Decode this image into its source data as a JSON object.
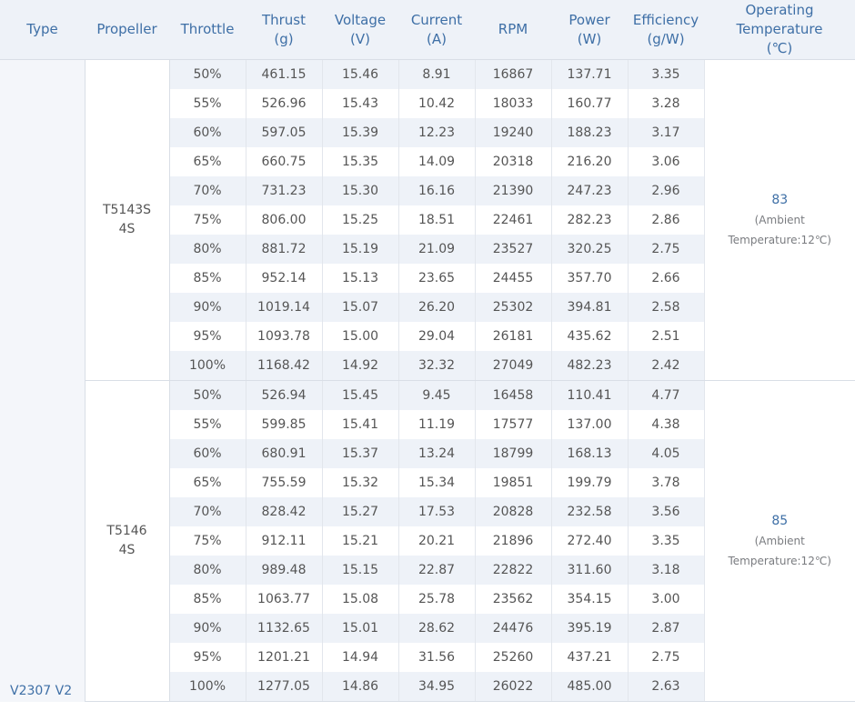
{
  "headers": [
    {
      "name": "Type",
      "unit": ""
    },
    {
      "name": "Propeller",
      "unit": ""
    },
    {
      "name": "Throttle",
      "unit": ""
    },
    {
      "name": "Thrust",
      "unit": "(g)"
    },
    {
      "name": "Voltage",
      "unit": "(V)"
    },
    {
      "name": "Current",
      "unit": "(A)"
    },
    {
      "name": "RPM",
      "unit": ""
    },
    {
      "name": "Power",
      "unit": "(W)"
    },
    {
      "name": "Efficiency",
      "unit": "(g/W)"
    },
    {
      "name": "Operating Temperature",
      "unit": "(℃)"
    }
  ],
  "type_label": "V2307 V2",
  "groups": [
    {
      "propeller": [
        "T5143S",
        "4S"
      ],
      "temperature": "83",
      "temperature_note": "(Ambient Temperature:12℃)",
      "rows": [
        [
          "50%",
          "461.15",
          "15.46",
          "8.91",
          "16867",
          "137.71",
          "3.35"
        ],
        [
          "55%",
          "526.96",
          "15.43",
          "10.42",
          "18033",
          "160.77",
          "3.28"
        ],
        [
          "60%",
          "597.05",
          "15.39",
          "12.23",
          "19240",
          "188.23",
          "3.17"
        ],
        [
          "65%",
          "660.75",
          "15.35",
          "14.09",
          "20318",
          "216.20",
          "3.06"
        ],
        [
          "70%",
          "731.23",
          "15.30",
          "16.16",
          "21390",
          "247.23",
          "2.96"
        ],
        [
          "75%",
          "806.00",
          "15.25",
          "18.51",
          "22461",
          "282.23",
          "2.86"
        ],
        [
          "80%",
          "881.72",
          "15.19",
          "21.09",
          "23527",
          "320.25",
          "2.75"
        ],
        [
          "85%",
          "952.14",
          "15.13",
          "23.65",
          "24455",
          "357.70",
          "2.66"
        ],
        [
          "90%",
          "1019.14",
          "15.07",
          "26.20",
          "25302",
          "394.81",
          "2.58"
        ],
        [
          "95%",
          "1093.78",
          "15.00",
          "29.04",
          "26181",
          "435.62",
          "2.51"
        ],
        [
          "100%",
          "1168.42",
          "14.92",
          "32.32",
          "27049",
          "482.23",
          "2.42"
        ]
      ]
    },
    {
      "propeller": [
        "T5146",
        "4S"
      ],
      "temperature": "85",
      "temperature_note": "(Ambient Temperature:12℃)",
      "rows": [
        [
          "50%",
          "526.94",
          "15.45",
          "9.45",
          "16458",
          "110.41",
          "4.77"
        ],
        [
          "55%",
          "599.85",
          "15.41",
          "11.19",
          "17577",
          "137.00",
          "4.38"
        ],
        [
          "60%",
          "680.91",
          "15.37",
          "13.24",
          "18799",
          "168.13",
          "4.05"
        ],
        [
          "65%",
          "755.59",
          "15.32",
          "15.34",
          "19851",
          "199.79",
          "3.78"
        ],
        [
          "70%",
          "828.42",
          "15.27",
          "17.53",
          "20828",
          "232.58",
          "3.56"
        ],
        [
          "75%",
          "912.11",
          "15.21",
          "20.21",
          "21896",
          "272.40",
          "3.35"
        ],
        [
          "80%",
          "989.48",
          "15.15",
          "22.87",
          "22822",
          "311.60",
          "3.18"
        ],
        [
          "85%",
          "1063.77",
          "15.08",
          "25.78",
          "23562",
          "354.15",
          "3.00"
        ],
        [
          "90%",
          "1132.65",
          "15.01",
          "28.62",
          "24476",
          "395.19",
          "2.87"
        ],
        [
          "95%",
          "1201.21",
          "14.94",
          "31.56",
          "25260",
          "437.21",
          "2.75"
        ],
        [
          "100%",
          "1277.05",
          "14.86",
          "34.95",
          "26022",
          "485.00",
          "2.63"
        ]
      ]
    }
  ],
  "colors": {
    "header_bg": "#eef2f8",
    "header_text": "#3e6fa6",
    "stripe": "#eef2f8",
    "body_text": "#555555"
  }
}
